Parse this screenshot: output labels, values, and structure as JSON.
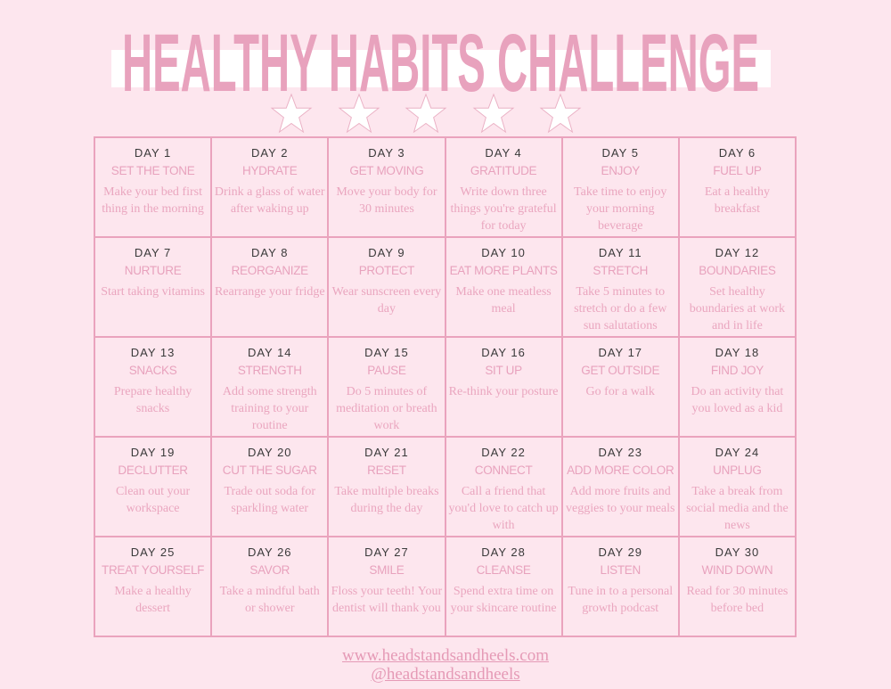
{
  "title": "HEALTHY HABITS CHALLENGE",
  "stars": 5,
  "colors": {
    "background": "#fde6ee",
    "accent": "#e8a2bd",
    "day_label": "#3a3a3a"
  },
  "days": [
    {
      "day": "DAY 1",
      "name": "SET THE TONE",
      "desc": "Make your bed first thing in the morning"
    },
    {
      "day": "DAY 2",
      "name": "HYDRATE",
      "desc": "Drink a glass of water after waking up"
    },
    {
      "day": "DAY 3",
      "name": "GET MOVING",
      "desc": "Move your body for 30 minutes"
    },
    {
      "day": "DAY 4",
      "name": "GRATITUDE",
      "desc": "Write down three things you're grateful for today"
    },
    {
      "day": "DAY 5",
      "name": "ENJOY",
      "desc": "Take time to enjoy your morning beverage"
    },
    {
      "day": "DAY 6",
      "name": "FUEL UP",
      "desc": "Eat a healthy breakfast"
    },
    {
      "day": "DAY 7",
      "name": "NURTURE",
      "desc": "Start taking vitamins"
    },
    {
      "day": "DAY 8",
      "name": "REORGANIZE",
      "desc": "Rearrange your fridge"
    },
    {
      "day": "DAY 9",
      "name": "PROTECT",
      "desc": "Wear sunscreen every day"
    },
    {
      "day": "DAY 10",
      "name": "EAT MORE PLANTS",
      "desc": "Make one meatless meal"
    },
    {
      "day": "DAY 11",
      "name": "STRETCH",
      "desc": "Take 5 minutes to stretch or do a few sun salutations"
    },
    {
      "day": "DAY 12",
      "name": "BOUNDARIES",
      "desc": "Set healthy boundaries at work and in life"
    },
    {
      "day": "DAY 13",
      "name": "SNACKS",
      "desc": "Prepare healthy snacks"
    },
    {
      "day": "DAY 14",
      "name": "STRENGTH",
      "desc": "Add some strength training to your routine"
    },
    {
      "day": "DAY 15",
      "name": "PAUSE",
      "desc": "Do 5 minutes of meditation or breath work"
    },
    {
      "day": "DAY 16",
      "name": "SIT UP",
      "desc": "Re-think your posture"
    },
    {
      "day": "DAY 17",
      "name": "GET OUTSIDE",
      "desc": "Go for a walk"
    },
    {
      "day": "DAY 18",
      "name": "FIND JOY",
      "desc": "Do an activity that you loved as a kid"
    },
    {
      "day": "DAY 19",
      "name": "DECLUTTER",
      "desc": "Clean out your workspace"
    },
    {
      "day": "DAY 20",
      "name": "CUT THE SUGAR",
      "desc": "Trade out soda for sparkling water"
    },
    {
      "day": "DAY 21",
      "name": "RESET",
      "desc": "Take multiple breaks during the day"
    },
    {
      "day": "DAY 22",
      "name": "CONNECT",
      "desc": "Call a friend that you'd love to catch up with"
    },
    {
      "day": "DAY 23",
      "name": "ADD MORE COLOR",
      "desc": "Add more fruits and veggies to your meals"
    },
    {
      "day": "DAY 24",
      "name": "UNPLUG",
      "desc": "Take a break from social media and the news"
    },
    {
      "day": "DAY 25",
      "name": "TREAT YOURSELF",
      "desc": "Make a healthy dessert"
    },
    {
      "day": "DAY 26",
      "name": "SAVOR",
      "desc": "Take a mindful bath or shower"
    },
    {
      "day": "DAY 27",
      "name": "SMILE",
      "desc": "Floss your teeth! Your dentist will thank you"
    },
    {
      "day": "DAY 28",
      "name": "CLEANSE",
      "desc": "Spend extra time on your skincare routine"
    },
    {
      "day": "DAY 29",
      "name": "LISTEN",
      "desc": "Tune in to a personal growth podcast"
    },
    {
      "day": "DAY 30",
      "name": "WIND DOWN",
      "desc": "Read for 30 minutes before bed"
    }
  ],
  "footer": {
    "website": "www.headstandsandheels.com",
    "handle": "@headstandsandheels"
  }
}
